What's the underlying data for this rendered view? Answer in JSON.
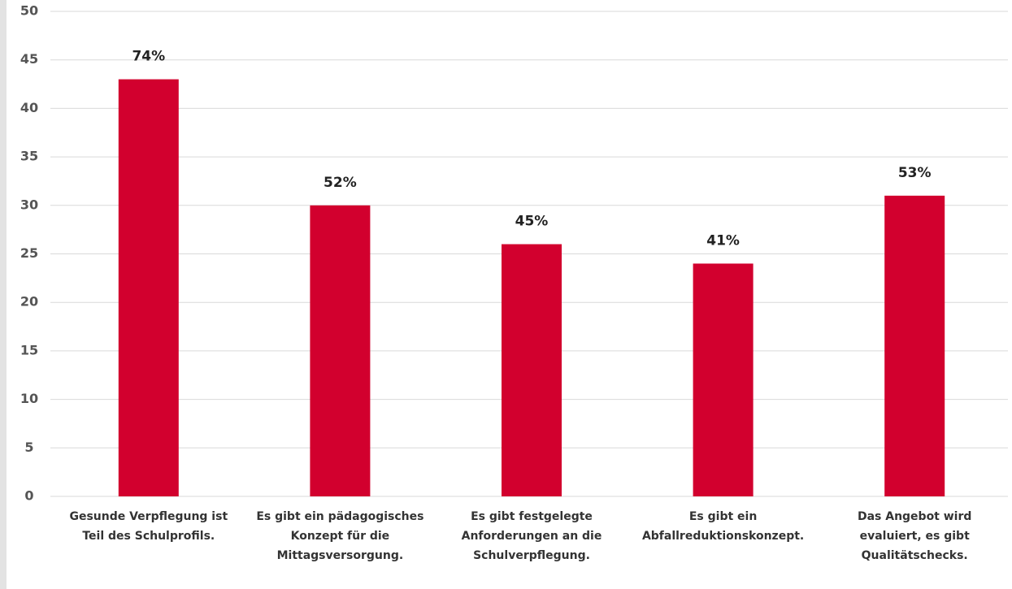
{
  "chart_data": {
    "type": "bar",
    "categories": [
      [
        "Gesunde Verpflegung ist",
        "Teil des Schulprofils."
      ],
      [
        "Es gibt ein pädagogisches",
        "Konzept für die",
        "Mittagsversorgung."
      ],
      [
        "Es gibt festgelegte",
        "Anforderungen an die",
        "Schulverpflegung."
      ],
      [
        "Es gibt ein",
        "Abfallreduktionskonzept."
      ],
      [
        "Das Angebot wird",
        "evaluiert, es gibt",
        "Qualitätschecks."
      ]
    ],
    "values": [
      43,
      30,
      26,
      24,
      31
    ],
    "bar_labels": [
      "74%",
      "52%",
      "45%",
      "41%",
      "53%"
    ],
    "color": "#d2002e",
    "ylim": [
      0,
      50
    ],
    "yticks": [
      0,
      5,
      10,
      15,
      20,
      25,
      30,
      35,
      40,
      45,
      50
    ],
    "grid": true
  }
}
